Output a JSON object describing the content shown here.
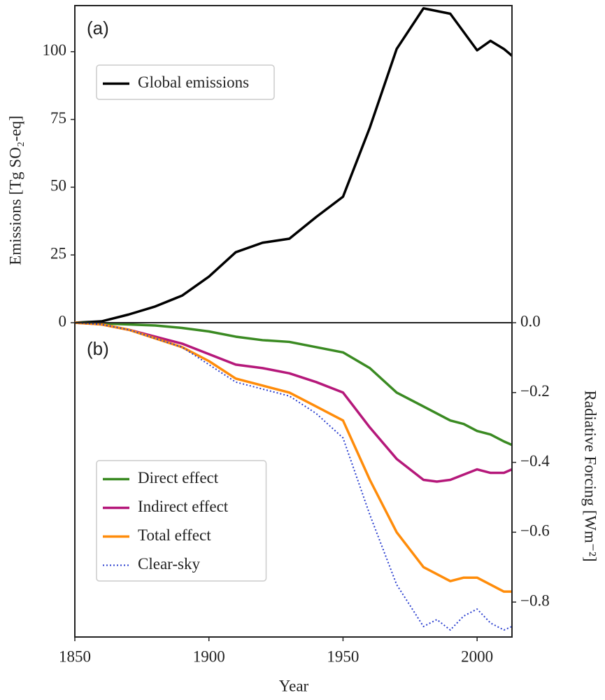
{
  "chart_data": [
    {
      "type": "line",
      "panel_label": "(a)",
      "ylabel": "Emissions [Tg SO₂-eq]",
      "x": [
        1850,
        1860,
        1870,
        1880,
        1890,
        1900,
        1910,
        1920,
        1930,
        1940,
        1950,
        1960,
        1970,
        1980,
        1990,
        2000,
        2005,
        2010,
        2013
      ],
      "series": [
        {
          "name": "Global emissions",
          "color": "#000000",
          "style": "solid",
          "values": [
            0,
            0.5,
            3,
            6,
            10,
            17,
            26,
            29.5,
            31,
            39,
            46.5,
            72,
            101,
            116,
            114,
            100.5,
            104,
            101,
            98.5
          ]
        }
      ],
      "xlim": [
        1850,
        2013
      ],
      "ylim": [
        0,
        117
      ],
      "yticks": [
        0,
        25,
        50,
        75,
        100
      ],
      "legend": "upper left"
    },
    {
      "type": "line",
      "panel_label": "(b)",
      "xlabel": "Year",
      "y2label": "Radiative Forcing [Wm⁻²]",
      "x": [
        1850,
        1860,
        1870,
        1880,
        1890,
        1900,
        1910,
        1920,
        1930,
        1940,
        1950,
        1960,
        1970,
        1980,
        1985,
        1990,
        1995,
        2000,
        2005,
        2010,
        2013
      ],
      "series": [
        {
          "name": "Direct effect",
          "color": "#3a8a22",
          "style": "solid",
          "axis": "y2",
          "values": [
            0,
            -0.002,
            -0.005,
            -0.008,
            -0.015,
            -0.025,
            -0.04,
            -0.05,
            -0.055,
            -0.07,
            -0.085,
            -0.13,
            -0.2,
            -0.24,
            -0.26,
            -0.28,
            -0.29,
            -0.31,
            -0.32,
            -0.34,
            -0.35
          ]
        },
        {
          "name": "Indirect effect",
          "color": "#b5187a",
          "style": "solid",
          "axis": "y2",
          "values": [
            0,
            -0.005,
            -0.02,
            -0.04,
            -0.06,
            -0.09,
            -0.12,
            -0.13,
            -0.145,
            -0.17,
            -0.2,
            -0.3,
            -0.39,
            -0.45,
            -0.455,
            -0.45,
            -0.435,
            -0.42,
            -0.43,
            -0.43,
            -0.42
          ]
        },
        {
          "name": "Total effect",
          "color": "#ff8c0a",
          "style": "solid",
          "axis": "y2",
          "values": [
            0,
            -0.005,
            -0.02,
            -0.045,
            -0.07,
            -0.11,
            -0.16,
            -0.18,
            -0.2,
            -0.24,
            -0.28,
            -0.45,
            -0.6,
            -0.7,
            -0.72,
            -0.74,
            -0.73,
            -0.73,
            -0.75,
            -0.77,
            -0.77
          ]
        },
        {
          "name": "Clear-sky",
          "color": "#2b3fcf",
          "style": "dotted",
          "axis": "y2",
          "values": [
            0,
            -0.005,
            -0.02,
            -0.045,
            -0.07,
            -0.12,
            -0.17,
            -0.19,
            -0.21,
            -0.26,
            -0.33,
            -0.55,
            -0.75,
            -0.87,
            -0.85,
            -0.88,
            -0.84,
            -0.82,
            -0.86,
            -0.88,
            -0.87
          ]
        }
      ],
      "xlim": [
        1850,
        2013
      ],
      "xticks": [
        1850,
        1900,
        1950,
        2000
      ],
      "y2lim": [
        -0.9,
        0
      ],
      "y2ticks": [
        {
          "value": 0,
          "label": "0.0"
        },
        {
          "value": -0.2,
          "label": "−0.2"
        },
        {
          "value": -0.4,
          "label": "−0.4"
        },
        {
          "value": -0.6,
          "label": "−0.6"
        },
        {
          "value": -0.8,
          "label": "−0.8"
        }
      ],
      "legend": "lower left"
    }
  ]
}
